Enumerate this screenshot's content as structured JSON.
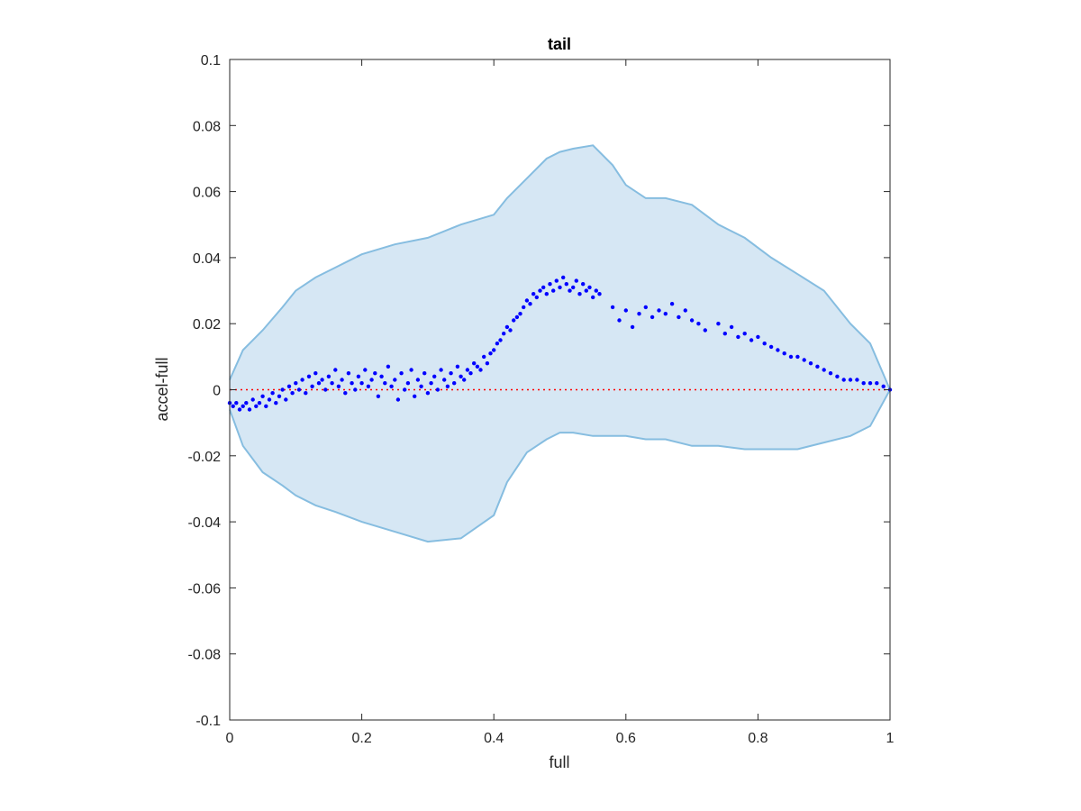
{
  "chart_data": {
    "type": "scatter",
    "title": "tail",
    "xlabel": "full",
    "ylabel": "accel-full",
    "xlim": [
      0,
      1
    ],
    "ylim": [
      -0.1,
      0.1
    ],
    "x_ticks": [
      0,
      0.2,
      0.4,
      0.6,
      0.8,
      1
    ],
    "x_tick_labels": [
      "0",
      "0.2",
      "0.4",
      "0.6",
      "0.8",
      "1"
    ],
    "y_ticks": [
      -0.1,
      -0.08,
      -0.06,
      -0.04,
      -0.02,
      0,
      0.02,
      0.04,
      0.06,
      0.08,
      0.1
    ],
    "y_tick_labels": [
      "-0.1",
      "-0.08",
      "-0.06",
      "-0.04",
      "-0.02",
      "0",
      "0.02",
      "0.04",
      "0.06",
      "0.08",
      "0.1"
    ],
    "grid": false,
    "colors": {
      "band_fill": "#d6e7f4",
      "band_edge": "#86bde0",
      "points": "#0000ff",
      "zero_line": "#ff0000",
      "axis": "#262626"
    },
    "zero_line": {
      "y": 0,
      "style": "dotted"
    },
    "band": {
      "x": [
        0,
        0.02,
        0.05,
        0.08,
        0.1,
        0.13,
        0.16,
        0.2,
        0.25,
        0.3,
        0.35,
        0.4,
        0.42,
        0.45,
        0.48,
        0.5,
        0.52,
        0.55,
        0.58,
        0.6,
        0.63,
        0.66,
        0.7,
        0.74,
        0.78,
        0.82,
        0.86,
        0.9,
        0.94,
        0.97,
        1.0
      ],
      "upper": [
        0.003,
        0.012,
        0.018,
        0.025,
        0.03,
        0.034,
        0.037,
        0.041,
        0.044,
        0.046,
        0.05,
        0.053,
        0.058,
        0.064,
        0.07,
        0.072,
        0.073,
        0.074,
        0.068,
        0.062,
        0.058,
        0.058,
        0.056,
        0.05,
        0.046,
        0.04,
        0.035,
        0.03,
        0.02,
        0.014,
        0.0
      ],
      "lower": [
        -0.006,
        -0.017,
        -0.025,
        -0.029,
        -0.032,
        -0.035,
        -0.037,
        -0.04,
        -0.043,
        -0.046,
        -0.045,
        -0.038,
        -0.028,
        -0.019,
        -0.015,
        -0.013,
        -0.013,
        -0.014,
        -0.014,
        -0.014,
        -0.015,
        -0.015,
        -0.017,
        -0.017,
        -0.018,
        -0.018,
        -0.018,
        -0.016,
        -0.014,
        -0.011,
        0.0
      ]
    },
    "series": [
      {
        "x": [
          0.0,
          0.005,
          0.01,
          0.015,
          0.02,
          0.025,
          0.03,
          0.035,
          0.04,
          0.045,
          0.05,
          0.055,
          0.06,
          0.065,
          0.07,
          0.075,
          0.08,
          0.085,
          0.09,
          0.095,
          0.1,
          0.105,
          0.11,
          0.115,
          0.12,
          0.125,
          0.13,
          0.135,
          0.14,
          0.145,
          0.15,
          0.155,
          0.16,
          0.165,
          0.17,
          0.175,
          0.18,
          0.185,
          0.19,
          0.195,
          0.2,
          0.205,
          0.21,
          0.215,
          0.22,
          0.225,
          0.23,
          0.235,
          0.24,
          0.245,
          0.25,
          0.255,
          0.26,
          0.265,
          0.27,
          0.275,
          0.28,
          0.285,
          0.29,
          0.295,
          0.3,
          0.305,
          0.31,
          0.315,
          0.32,
          0.325,
          0.33,
          0.335,
          0.34,
          0.345,
          0.35,
          0.355,
          0.36,
          0.365,
          0.37,
          0.375,
          0.38,
          0.385,
          0.39,
          0.395,
          0.4,
          0.405,
          0.41,
          0.415,
          0.42,
          0.425,
          0.43,
          0.435,
          0.44,
          0.445,
          0.45,
          0.455,
          0.46,
          0.465,
          0.47,
          0.475,
          0.48,
          0.485,
          0.49,
          0.495,
          0.5,
          0.505,
          0.51,
          0.515,
          0.52,
          0.525,
          0.53,
          0.535,
          0.54,
          0.545,
          0.55,
          0.555,
          0.56,
          0.58,
          0.59,
          0.6,
          0.61,
          0.62,
          0.63,
          0.64,
          0.65,
          0.66,
          0.67,
          0.68,
          0.69,
          0.7,
          0.71,
          0.72,
          0.74,
          0.75,
          0.76,
          0.77,
          0.78,
          0.79,
          0.8,
          0.81,
          0.82,
          0.83,
          0.84,
          0.85,
          0.86,
          0.87,
          0.88,
          0.89,
          0.9,
          0.91,
          0.92,
          0.93,
          0.94,
          0.95,
          0.96,
          0.97,
          0.98,
          0.99,
          1.0
        ],
        "y": [
          -0.004,
          -0.005,
          -0.004,
          -0.006,
          -0.005,
          -0.004,
          -0.006,
          -0.003,
          -0.005,
          -0.004,
          -0.002,
          -0.005,
          -0.003,
          -0.001,
          -0.004,
          -0.002,
          0.0,
          -0.003,
          0.001,
          -0.001,
          0.002,
          0.0,
          0.003,
          -0.001,
          0.004,
          0.001,
          0.005,
          0.002,
          0.003,
          0.0,
          0.004,
          0.002,
          0.006,
          0.001,
          0.003,
          -0.001,
          0.005,
          0.002,
          0.0,
          0.004,
          0.002,
          0.006,
          0.001,
          0.003,
          0.005,
          -0.002,
          0.004,
          0.002,
          0.007,
          0.001,
          0.003,
          -0.003,
          0.005,
          0.0,
          0.002,
          0.006,
          -0.002,
          0.003,
          0.001,
          0.005,
          -0.001,
          0.002,
          0.004,
          0.0,
          0.006,
          0.003,
          0.001,
          0.005,
          0.002,
          0.007,
          0.004,
          0.003,
          0.006,
          0.005,
          0.008,
          0.007,
          0.006,
          0.01,
          0.008,
          0.011,
          0.012,
          0.014,
          0.015,
          0.017,
          0.019,
          0.018,
          0.021,
          0.022,
          0.023,
          0.025,
          0.027,
          0.026,
          0.029,
          0.028,
          0.03,
          0.031,
          0.029,
          0.032,
          0.03,
          0.033,
          0.031,
          0.034,
          0.032,
          0.03,
          0.031,
          0.033,
          0.029,
          0.032,
          0.03,
          0.031,
          0.028,
          0.03,
          0.029,
          0.025,
          0.021,
          0.024,
          0.019,
          0.023,
          0.025,
          0.022,
          0.024,
          0.023,
          0.026,
          0.022,
          0.024,
          0.021,
          0.02,
          0.018,
          0.02,
          0.017,
          0.019,
          0.016,
          0.017,
          0.015,
          0.016,
          0.014,
          0.013,
          0.012,
          0.011,
          0.01,
          0.01,
          0.009,
          0.008,
          0.007,
          0.006,
          0.005,
          0.004,
          0.003,
          0.003,
          0.003,
          0.002,
          0.002,
          0.002,
          0.001,
          0.0
        ]
      }
    ]
  }
}
